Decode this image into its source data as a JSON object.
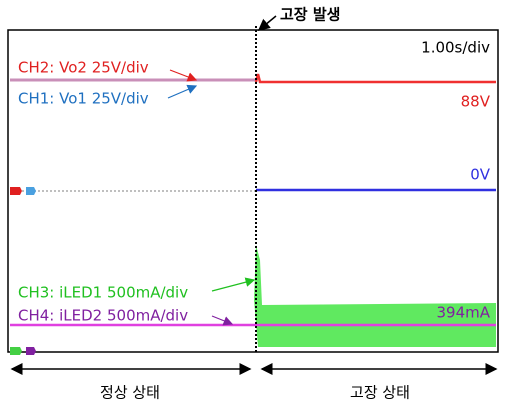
{
  "fault_label": "고장 발생",
  "timebase": "1.00s/div",
  "channels": [
    "CH2: Vo2 25V/div",
    "CH1: Vo1 25V/div",
    "CH3: iLED1 500mA/div",
    "CH4: iLED2 500mA/div"
  ],
  "readouts": [
    "88V",
    "0V",
    "394mA"
  ],
  "phases": [
    "정상 상태",
    "고장 상태"
  ]
}
